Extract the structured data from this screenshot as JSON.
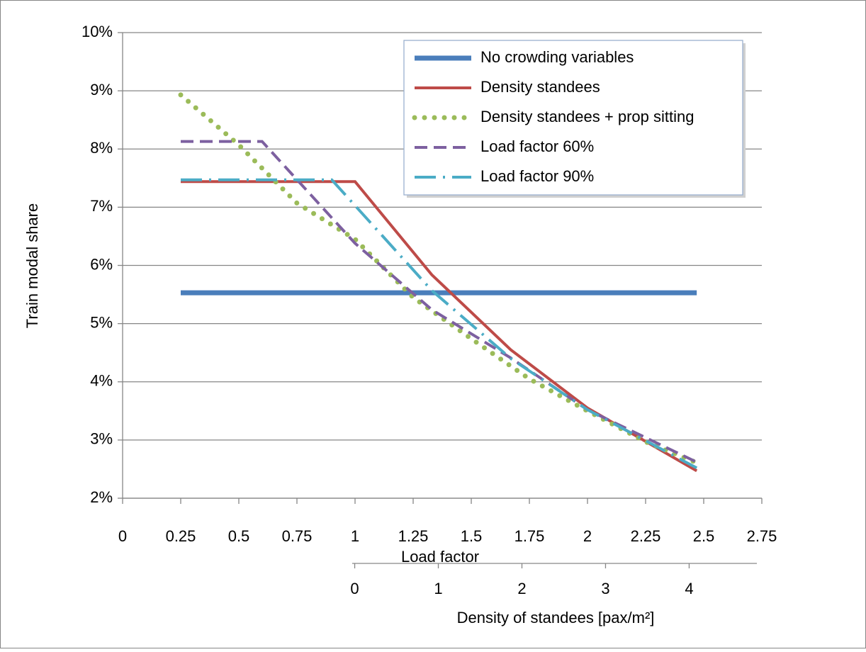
{
  "chart_data": {
    "type": "line",
    "ylabel": "Train modal share",
    "xlabel": "Load factor",
    "x2label": "Density of standees [pax/m²]",
    "xlim": [
      0,
      2.75
    ],
    "xticks": [
      0,
      0.25,
      0.5,
      0.75,
      1,
      1.25,
      1.5,
      1.75,
      2,
      2.25,
      2.5,
      2.75
    ],
    "ylim": [
      2,
      10
    ],
    "yticks": [
      {
        "value": 2,
        "label": "2%"
      },
      {
        "value": 3,
        "label": "3%"
      },
      {
        "value": 4,
        "label": "4%"
      },
      {
        "value": 5,
        "label": "5%"
      },
      {
        "value": 6,
        "label": "6%"
      },
      {
        "value": 7,
        "label": "7%"
      },
      {
        "value": 8,
        "label": "8%"
      },
      {
        "value": 9,
        "label": "9%"
      },
      {
        "value": 10,
        "label": "10%"
      }
    ],
    "x2lim": [
      -0.03,
      4.81
    ],
    "x2ticks": [
      0,
      1,
      2,
      3,
      4
    ],
    "grid": true,
    "legend": "top-right",
    "series": [
      {
        "name": "No crowding variables",
        "color": "#4a7ebb",
        "style": "thick",
        "x": [
          0.25,
          2.47
        ],
        "values": [
          5.53,
          5.53
        ]
      },
      {
        "name": "Density standees",
        "color": "#be4b48",
        "style": "solid",
        "x": [
          0.25,
          1.0,
          1.33,
          1.67,
          2.0,
          2.47
        ],
        "values": [
          7.44,
          7.44,
          5.84,
          4.55,
          3.55,
          2.47
        ]
      },
      {
        "name": "Density standees + prop sitting",
        "color": "#9bbb59",
        "style": "dotted",
        "x": [
          0.25,
          0.5,
          0.75,
          1.0,
          1.25,
          1.5,
          1.75,
          2.0,
          2.25,
          2.47
        ],
        "values": [
          8.93,
          8.07,
          7.07,
          6.45,
          5.45,
          4.74,
          4.05,
          3.5,
          2.97,
          2.61
        ]
      },
      {
        "name": "Load factor 60%",
        "color": "#7d60a0",
        "style": "dashed",
        "x": [
          0.25,
          0.6,
          1.0,
          1.33,
          1.67,
          2.0,
          2.47
        ],
        "values": [
          8.13,
          8.13,
          6.38,
          5.24,
          4.41,
          3.52,
          2.62
        ]
      },
      {
        "name": "Load factor 90%",
        "color": "#4bacc6",
        "style": "dash-dot",
        "x": [
          0.25,
          0.9,
          1.33,
          1.67,
          2.0,
          2.47
        ],
        "values": [
          7.47,
          7.47,
          5.57,
          4.4,
          3.52,
          2.52
        ]
      }
    ]
  }
}
